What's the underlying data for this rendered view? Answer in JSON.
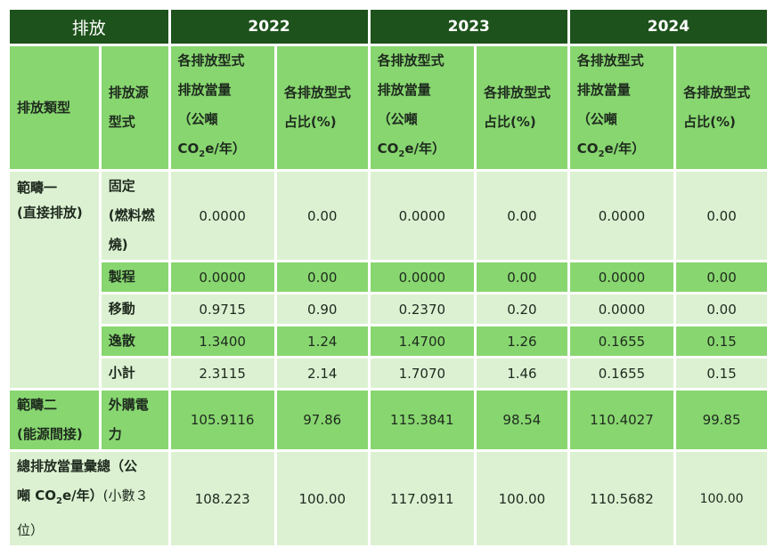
{
  "header": {
    "corner": "排放",
    "years": [
      "2022",
      "2023",
      "2024"
    ]
  },
  "subheader": {
    "category": "排放類型",
    "source_l1": "排放源",
    "source_l2": "型式",
    "amount_l1": "各排放型式",
    "amount_l2": "排放當量",
    "amount_l3": "（公噸",
    "amount_co": "CO",
    "amount_sub": "2",
    "amount_tail": "e/年）",
    "share_l1": "各排放型式",
    "share_l2": "占比(%)"
  },
  "scope1": {
    "label_l1": "範疇一",
    "label_l2": "(直接排放)",
    "rows": [
      {
        "source_l1": "固定",
        "source_l2": "(燃料燃",
        "source_l3": "燒)",
        "values": [
          "0.0000",
          "0.00",
          "0.0000",
          "0.00",
          "0.0000",
          "0.00"
        ]
      },
      {
        "source_l1": "製程",
        "values": [
          "0.0000",
          "0.00",
          "0.0000",
          "0.00",
          "0.0000",
          "0.00"
        ]
      },
      {
        "source_l1": "移動",
        "values": [
          "0.9715",
          "0.90",
          "0.2370",
          "0.20",
          "0.0000",
          "0.00"
        ]
      },
      {
        "source_l1": "逸散",
        "values": [
          "1.3400",
          "1.24",
          "1.4700",
          "1.26",
          "0.1655",
          "0.15"
        ]
      },
      {
        "source_l1": "小計",
        "values": [
          "2.3115",
          "2.14",
          "1.7070",
          "1.46",
          "0.1655",
          "0.15"
        ]
      }
    ]
  },
  "scope2": {
    "label_l1": "範疇二",
    "label_l2": "(能源間接)",
    "source_l1": "外購電",
    "source_l2": "力",
    "values": [
      "105.9116",
      "97.86",
      "115.3841",
      "98.54",
      "110.4027",
      "99.85"
    ]
  },
  "total": {
    "label_a": "總排放當量彙總（公",
    "label_b1": "噸 CO",
    "label_b_sub": "2",
    "label_b2": "e/年）",
    "label_b3": "(小數３",
    "label_c": "位）",
    "values": [
      "108.223",
      "100.00",
      "117.0911",
      "100.00",
      "110.5682",
      "100.00"
    ]
  },
  "colors": {
    "header_dark": "#1e521c",
    "cell_mid": "#88d670",
    "cell_light": "#dcf1d2"
  }
}
